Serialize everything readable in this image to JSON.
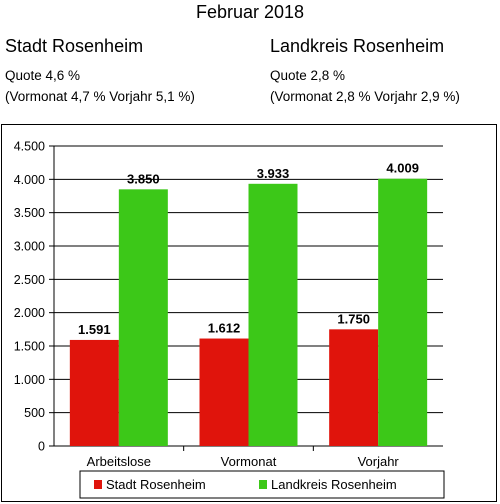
{
  "header": {
    "month": "Februar 2018",
    "stadt": {
      "name": "Stadt Rosenheim",
      "quote": "Quote 4,6 %",
      "previous": "(Vormonat 4,7 % Vorjahr  5,1 %)"
    },
    "landkreis": {
      "name": "Landkreis Rosenheim",
      "quote": "Quote 2,8 %",
      "previous": "(Vormonat 2,8 % Vorjahr 2,9 %)"
    }
  },
  "chart_data": {
    "type": "bar",
    "categories": [
      "Arbeitslose",
      "Vormonat",
      "Vorjahr"
    ],
    "series": [
      {
        "name": "Stadt Rosenheim",
        "color": "#e0140c",
        "values": [
          1591,
          1612,
          1750
        ],
        "labels": [
          "1.591",
          "1.612",
          "1.750"
        ]
      },
      {
        "name": "Landkreis Rosenheim",
        "color": "#3cc818",
        "values": [
          3850,
          3933,
          4009
        ],
        "labels": [
          "3.850",
          "3.933",
          "4.009"
        ]
      }
    ],
    "ylim": [
      0,
      4500
    ],
    "yticks": [
      {
        "value": 0,
        "label": "0"
      },
      {
        "value": 500,
        "label": "500"
      },
      {
        "value": 1000,
        "label": "1.000"
      },
      {
        "value": 1500,
        "label": "1.500"
      },
      {
        "value": 2000,
        "label": "2.000"
      },
      {
        "value": 2500,
        "label": "2.500"
      },
      {
        "value": 3000,
        "label": "3.000"
      },
      {
        "value": 3500,
        "label": "3.500"
      },
      {
        "value": 4000,
        "label": "4.000"
      },
      {
        "value": 4500,
        "label": "4.500"
      }
    ],
    "grid": true,
    "legend": "bottom"
  }
}
